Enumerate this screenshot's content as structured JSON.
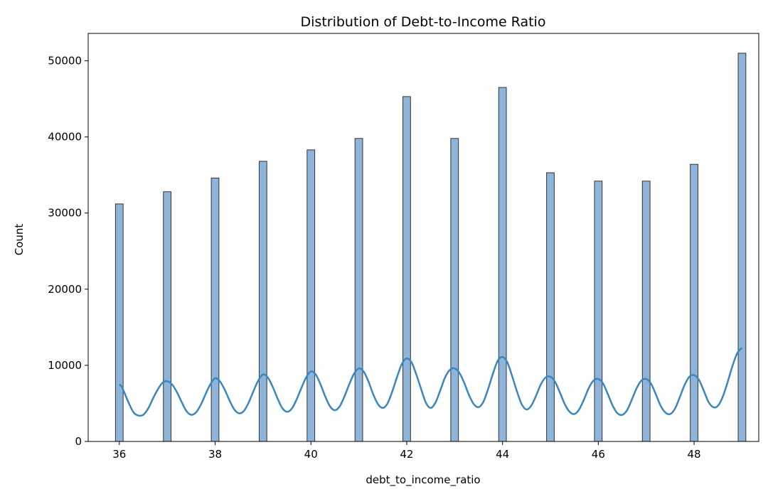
{
  "chart_data": {
    "type": "bar",
    "title": "Distribution of Debt-to-Income Ratio",
    "xlabel": "debt_to_income_ratio",
    "ylabel": "Count",
    "xlim": [
      35.35,
      49.35
    ],
    "ylim": [
      0,
      53600
    ],
    "xticks": [
      36,
      38,
      40,
      42,
      44,
      46,
      48
    ],
    "yticks": [
      0,
      10000,
      20000,
      30000,
      40000,
      50000
    ],
    "bin_width": 0.16,
    "x": [
      36,
      37,
      38,
      39,
      40,
      41,
      42,
      43,
      44,
      45,
      46,
      47,
      48,
      49
    ],
    "values": [
      31200,
      32800,
      34600,
      36800,
      38300,
      39800,
      45300,
      39800,
      46500,
      35300,
      34200,
      34200,
      36400,
      51000
    ],
    "kde_points": [
      [
        36.0,
        7500
      ],
      [
        36.05,
        7200
      ],
      [
        36.1,
        6500
      ],
      [
        36.2,
        5000
      ],
      [
        36.3,
        3800
      ],
      [
        36.4,
        3400
      ],
      [
        36.5,
        3500
      ],
      [
        36.6,
        4300
      ],
      [
        36.7,
        5600
      ],
      [
        36.8,
        6800
      ],
      [
        36.9,
        7700
      ],
      [
        37.0,
        7900
      ],
      [
        37.1,
        7500
      ],
      [
        37.2,
        6500
      ],
      [
        37.3,
        5200
      ],
      [
        37.4,
        4000
      ],
      [
        37.5,
        3500
      ],
      [
        37.6,
        3800
      ],
      [
        37.7,
        4800
      ],
      [
        37.8,
        6200
      ],
      [
        37.9,
        7500
      ],
      [
        38.0,
        8300
      ],
      [
        38.1,
        7900
      ],
      [
        38.2,
        6800
      ],
      [
        38.3,
        5400
      ],
      [
        38.4,
        4200
      ],
      [
        38.5,
        3700
      ],
      [
        38.6,
        4000
      ],
      [
        38.7,
        5100
      ],
      [
        38.8,
        6600
      ],
      [
        38.9,
        8000
      ],
      [
        39.0,
        8800
      ],
      [
        39.1,
        8400
      ],
      [
        39.2,
        7200
      ],
      [
        39.3,
        5700
      ],
      [
        39.4,
        4400
      ],
      [
        39.5,
        3900
      ],
      [
        39.6,
        4300
      ],
      [
        39.7,
        5500
      ],
      [
        39.8,
        7000
      ],
      [
        39.9,
        8400
      ],
      [
        40.0,
        9200
      ],
      [
        40.1,
        8800
      ],
      [
        40.2,
        7500
      ],
      [
        40.3,
        5900
      ],
      [
        40.4,
        4600
      ],
      [
        40.5,
        4100
      ],
      [
        40.6,
        4600
      ],
      [
        40.7,
        5900
      ],
      [
        40.8,
        7500
      ],
      [
        40.9,
        8900
      ],
      [
        41.0,
        9600
      ],
      [
        41.1,
        9200
      ],
      [
        41.2,
        7900
      ],
      [
        41.3,
        6200
      ],
      [
        41.4,
        4900
      ],
      [
        41.5,
        4400
      ],
      [
        41.6,
        5000
      ],
      [
        41.7,
        6600
      ],
      [
        41.8,
        8500
      ],
      [
        41.9,
        10200
      ],
      [
        42.0,
        10900
      ],
      [
        42.1,
        10400
      ],
      [
        42.2,
        8800
      ],
      [
        42.3,
        6900
      ],
      [
        42.4,
        5100
      ],
      [
        42.5,
        4400
      ],
      [
        42.6,
        5100
      ],
      [
        42.7,
        6700
      ],
      [
        42.8,
        8400
      ],
      [
        42.9,
        9400
      ],
      [
        43.0,
        9600
      ],
      [
        43.1,
        9000
      ],
      [
        43.2,
        7700
      ],
      [
        43.3,
        6100
      ],
      [
        43.4,
        4900
      ],
      [
        43.5,
        4500
      ],
      [
        43.6,
        5200
      ],
      [
        43.7,
        6900
      ],
      [
        43.8,
        8900
      ],
      [
        43.9,
        10600
      ],
      [
        44.0,
        11100
      ],
      [
        44.1,
        10400
      ],
      [
        44.2,
        8600
      ],
      [
        44.3,
        6600
      ],
      [
        44.4,
        4900
      ],
      [
        44.5,
        4200
      ],
      [
        44.6,
        4700
      ],
      [
        44.7,
        6000
      ],
      [
        44.8,
        7500
      ],
      [
        44.9,
        8400
      ],
      [
        45.0,
        8500
      ],
      [
        45.1,
        7800
      ],
      [
        45.2,
        6400
      ],
      [
        45.3,
        4900
      ],
      [
        45.4,
        3900
      ],
      [
        45.5,
        3600
      ],
      [
        45.6,
        4200
      ],
      [
        45.7,
        5500
      ],
      [
        45.8,
        7000
      ],
      [
        45.9,
        8000
      ],
      [
        46.0,
        8200
      ],
      [
        46.1,
        7600
      ],
      [
        46.2,
        6200
      ],
      [
        46.3,
        4700
      ],
      [
        46.4,
        3700
      ],
      [
        46.5,
        3500
      ],
      [
        46.6,
        4100
      ],
      [
        46.7,
        5500
      ],
      [
        46.8,
        7000
      ],
      [
        46.9,
        8000
      ],
      [
        47.0,
        8200
      ],
      [
        47.1,
        7600
      ],
      [
        47.2,
        6200
      ],
      [
        47.3,
        4700
      ],
      [
        47.4,
        3800
      ],
      [
        47.5,
        3600
      ],
      [
        47.6,
        4300
      ],
      [
        47.7,
        5800
      ],
      [
        47.8,
        7400
      ],
      [
        47.9,
        8500
      ],
      [
        48.0,
        8700
      ],
      [
        48.1,
        8100
      ],
      [
        48.2,
        6700
      ],
      [
        48.3,
        5200
      ],
      [
        48.4,
        4500
      ],
      [
        48.5,
        4700
      ],
      [
        48.6,
        5900
      ],
      [
        48.7,
        7800
      ],
      [
        48.8,
        9900
      ],
      [
        48.9,
        11600
      ],
      [
        49.0,
        12300
      ]
    ],
    "colors": {
      "bar_fill": "#8eb5d9",
      "bar_stroke": "#333333",
      "kde_line": "#3a87bf",
      "axis": "#000000"
    },
    "grid": false,
    "legend": "none"
  }
}
